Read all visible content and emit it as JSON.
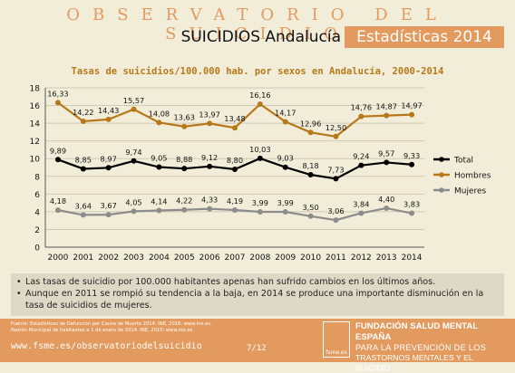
{
  "header": {
    "title": "OBSERVATORIO DEL SUICIDIO",
    "subtitle_left": "SUICIDIOS Andalucía",
    "subtitle_right": "Estadísticas 2014"
  },
  "chart_data": {
    "type": "line",
    "title": "Tasas de suicidios/100.000 hab. por sexos en Andalucía, 2000-2014",
    "categories": [
      "2000",
      "2001",
      "2002",
      "2003",
      "2004",
      "2005",
      "2006",
      "2007",
      "2008",
      "2009",
      "2010",
      "2011",
      "2012",
      "2013",
      "2014"
    ],
    "ylim": [
      0,
      18
    ],
    "yticks": [
      0,
      2,
      4,
      6,
      8,
      10,
      12,
      14,
      16,
      18
    ],
    "grid": true,
    "legend_position": "right",
    "series": [
      {
        "name": "Total",
        "color": "#000000",
        "values": [
          9.89,
          8.85,
          8.97,
          9.74,
          9.05,
          8.88,
          9.12,
          8.8,
          10.03,
          9.03,
          8.18,
          7.73,
          9.24,
          9.57,
          9.33
        ],
        "labels": [
          "9,89",
          "8,85",
          "8,97",
          "9,74",
          "9,05",
          "8,88",
          "9,12",
          "8,80",
          "10,03",
          "9,03",
          "8,18",
          "7,73",
          "9,24",
          "9,57",
          "9,33"
        ]
      },
      {
        "name": "Hombres",
        "color": "#b7781a",
        "values": [
          16.33,
          14.22,
          14.43,
          15.57,
          14.08,
          13.63,
          13.97,
          13.48,
          16.16,
          14.17,
          12.96,
          12.5,
          14.76,
          14.87,
          14.97
        ],
        "labels": [
          "16,33",
          "14,22",
          "14,43",
          "15,57",
          "14,08",
          "13,63",
          "13,97",
          "13,48",
          "16,16",
          "14,17",
          "12,96",
          "12,50",
          "14,76",
          "14,87",
          "14,97"
        ]
      },
      {
        "name": "Mujeres",
        "color": "#8c8c8c",
        "values": [
          4.18,
          3.64,
          3.67,
          4.05,
          4.14,
          4.22,
          4.33,
          4.19,
          3.99,
          3.99,
          3.5,
          3.06,
          3.84,
          4.4,
          3.83
        ],
        "labels": [
          "4,18",
          "3,64",
          "3,67",
          "4,05",
          "4,14",
          "4,22",
          "4,33",
          "4,19",
          "3,99",
          "3,99",
          "3,50",
          "3,06",
          "3,84",
          "4,40",
          "3,83"
        ]
      }
    ]
  },
  "notes": [
    "Las tasas de suicidio por 100.000 habitantes apenas han sufrido cambios en los últimos años.",
    "Aunque en 2011 se rompió su tendencia a la baja, en 2014 se produce una importante disminución en la tasa de suicidios de mujeres."
  ],
  "footer": {
    "source1": "Fuente: Estadísticas de Defunción por Causa de Muerte 2014. INE, 2016: www.ine.es.",
    "source2": "Padrón Municipal de habitantes a 1 de enero de 2014. INE, 2015: www.ine.es.",
    "url": "www.fsme.es/observatoriodelsuicidio",
    "page": "7/12",
    "logo_text": "fsme.es",
    "org_line1": "FUNDACIÓN SALUD MENTAL ESPAÑA",
    "org_line2": "PARA LA PREVENCIÓN DE LOS",
    "org_line3": "TRASTORNOS MENTALES Y EL SUICIDIO"
  }
}
